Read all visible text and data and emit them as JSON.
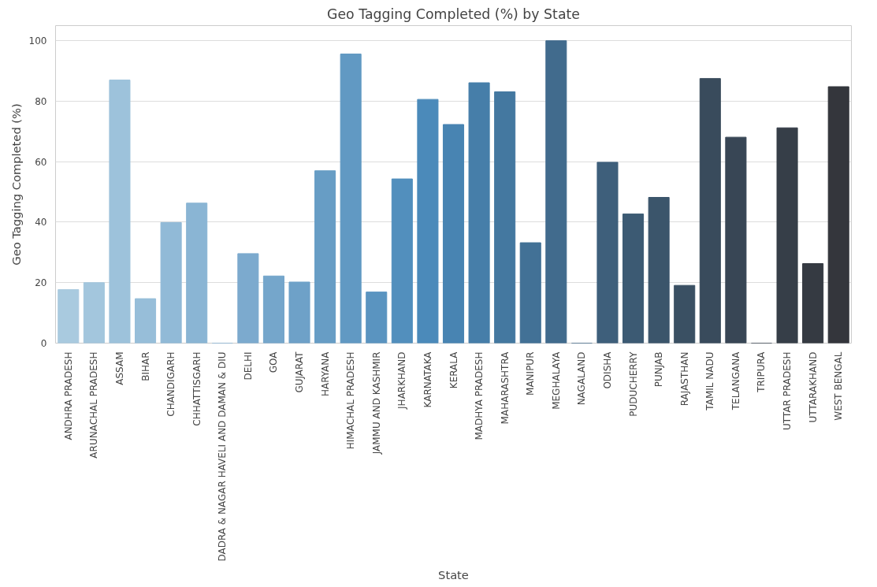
{
  "chart_data": {
    "type": "bar",
    "title": "Geo Tagging Completed (%) by State",
    "xlabel": "State",
    "ylabel": "Geo Tagging Completed (%)",
    "categories": [
      "ANDHRA PRADESH",
      "ARUNACHAL PRADESH",
      "ASSAM",
      "BIHAR",
      "CHANDIGARH",
      "CHHATTISGARH",
      "DADRA & NAGAR HAVELI AND DAMAN & DIU",
      "DELHI",
      "GOA",
      "GUJARAT",
      "HARYANA",
      "HIMACHAL PRADESH",
      "JAMMU AND KASHMIR",
      "JHARKHAND",
      "KARNATAKA",
      "KERALA",
      "MADHYA PRADESH",
      "MAHARASHTRA",
      "MANIPUR",
      "MEGHALAYA",
      "NAGALAND",
      "ODISHA",
      "PUDUCHERRY",
      "PUNJAB",
      "RAJASTHAN",
      "TAMIL NADU",
      "TELANGANA",
      "TRIPURA",
      "UTTAR PRADESH",
      "UTTARAKHAND",
      "WEST BENGAL"
    ],
    "values": [
      17.7,
      20,
      87,
      14.7,
      39.9,
      46.3,
      0,
      29.6,
      22.2,
      20.2,
      57,
      95.6,
      16.9,
      54.3,
      80.6,
      72.3,
      86.1,
      83.1,
      33.2,
      100,
      0,
      59.8,
      42.7,
      48.2,
      19.1,
      87.5,
      68.1,
      0,
      71.2,
      26.3,
      84.8
    ],
    "colors": [
      "#a9cadf",
      "#a3c6dd",
      "#9dc2db",
      "#97bed9",
      "#91bad7",
      "#8ab5d4",
      "#83b0d1",
      "#7caace",
      "#75a6cb",
      "#6ea1c8",
      "#679dc5",
      "#6199c3",
      "#5a94c0",
      "#528fbd",
      "#4b8aba",
      "#4884b2",
      "#467ea9",
      "#4478a0",
      "#427196",
      "#416b8d",
      "#3f6584",
      "#3e5f7b",
      "#3c5a73",
      "#3b556b",
      "#3a5063",
      "#394b5c",
      "#384655",
      "#37424e",
      "#363e48",
      "#353a42",
      "#34363c"
    ],
    "ylim": [
      0,
      105
    ],
    "yticks": [
      0,
      20,
      40,
      60,
      80,
      100
    ],
    "grid": "y"
  }
}
